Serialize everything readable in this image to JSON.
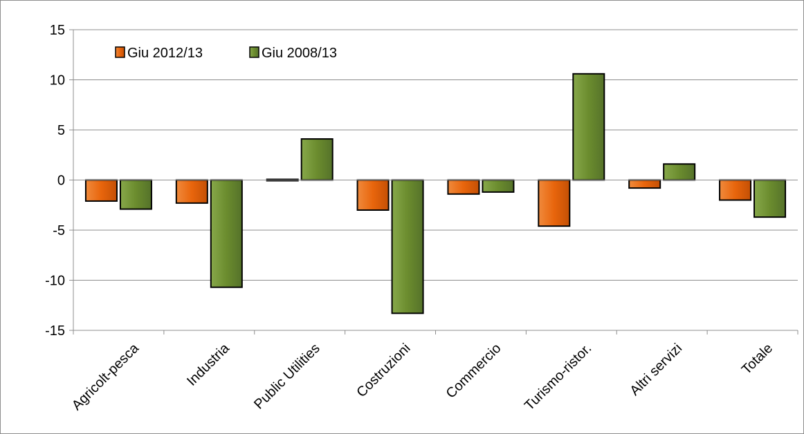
{
  "chart_data": {
    "type": "bar",
    "categories": [
      "Agricolt-pesca",
      "Industria",
      "Public Utilities",
      "Costruzioni",
      "Commercio",
      "Turismo-ristor.",
      "Altri servizi",
      "Totale"
    ],
    "series": [
      {
        "name": "Giu 2012/13",
        "color": "#e8650c",
        "values": [
          -2.1,
          -2.3,
          0.1,
          -3.0,
          -1.4,
          -4.6,
          -0.8,
          -2.0
        ]
      },
      {
        "name": "Giu 2008/13",
        "color": "#6b8c2e",
        "values": [
          -2.9,
          -10.7,
          4.1,
          -13.3,
          -1.2,
          10.6,
          1.6,
          -3.7
        ]
      }
    ],
    "ylim": [
      -15,
      15
    ],
    "yticks": [
      "15",
      "10",
      "5",
      "0",
      "-5",
      "-10",
      "-15"
    ],
    "ytick_values": [
      15,
      10,
      5,
      0,
      -5,
      -10,
      -15
    ],
    "grid": true,
    "legend_position": "top-left",
    "title": "",
    "xlabel": "",
    "ylabel": ""
  }
}
